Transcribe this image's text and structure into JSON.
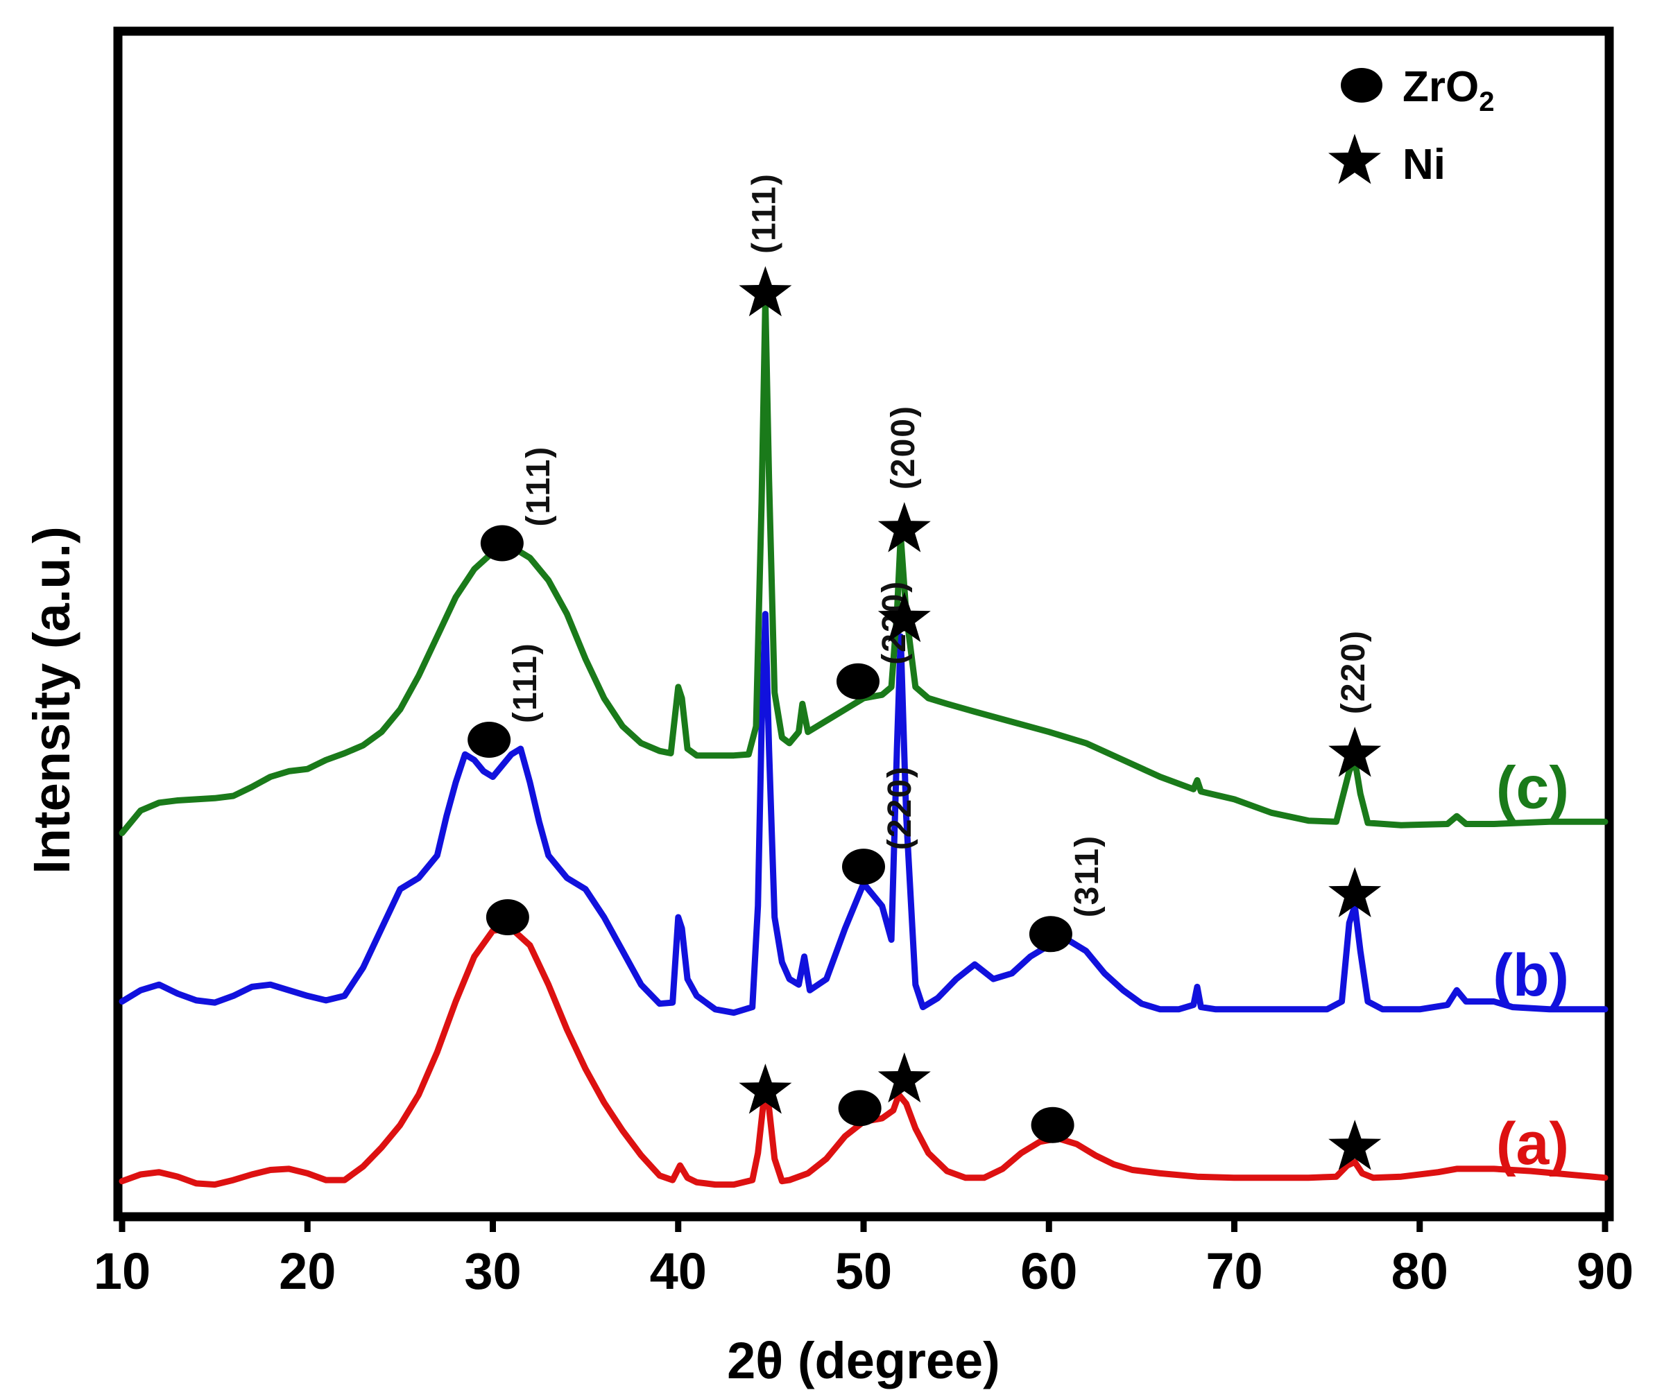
{
  "chart_data": {
    "type": "line",
    "xlabel": "2θ (degree)",
    "ylabel": "Intensity (a.u.)",
    "xlim": [
      10,
      90
    ],
    "ylim": [
      0,
      100
    ],
    "xticks": [
      "10",
      "20",
      "30",
      "40",
      "50",
      "60",
      "70",
      "80",
      "90"
    ],
    "legend": {
      "position": "top-right",
      "entries": [
        {
          "marker": "circle",
          "label_main": "ZrO",
          "label_sub": "2"
        },
        {
          "marker": "star",
          "label_main": "Ni",
          "label_sub": ""
        }
      ]
    },
    "series": [
      {
        "name": "(a)",
        "color": "#dd1111",
        "points": [
          [
            10,
            1.5
          ],
          [
            11,
            2.1
          ],
          [
            12,
            2.3
          ],
          [
            13,
            1.9
          ],
          [
            14,
            1.3
          ],
          [
            15,
            1.2
          ],
          [
            16,
            1.6
          ],
          [
            17,
            2.1
          ],
          [
            18,
            2.5
          ],
          [
            19,
            2.6
          ],
          [
            20,
            2.2
          ],
          [
            21,
            1.6
          ],
          [
            22,
            1.6
          ],
          [
            23,
            2.8
          ],
          [
            24,
            4.5
          ],
          [
            25,
            6.5
          ],
          [
            26,
            9.2
          ],
          [
            27,
            13
          ],
          [
            28,
            17.5
          ],
          [
            29,
            21.5
          ],
          [
            30,
            23.8
          ],
          [
            31,
            24
          ],
          [
            32,
            22.5
          ],
          [
            33,
            19
          ],
          [
            34,
            15
          ],
          [
            35,
            11.5
          ],
          [
            36,
            8.5
          ],
          [
            37,
            6
          ],
          [
            38,
            3.8
          ],
          [
            39,
            2
          ],
          [
            39.7,
            1.6
          ],
          [
            40.1,
            2.9
          ],
          [
            40.5,
            1.8
          ],
          [
            41,
            1.4
          ],
          [
            42,
            1.2
          ],
          [
            43,
            1.2
          ],
          [
            44,
            1.6
          ],
          [
            44.3,
            4
          ],
          [
            44.6,
            8.5
          ],
          [
            44.9,
            8
          ],
          [
            45.2,
            3.5
          ],
          [
            45.6,
            1.5
          ],
          [
            46,
            1.6
          ],
          [
            47,
            2.2
          ],
          [
            48,
            3.5
          ],
          [
            49,
            5.5
          ],
          [
            50,
            6.8
          ],
          [
            51,
            7.1
          ],
          [
            51.6,
            7.8
          ],
          [
            51.9,
            9.2
          ],
          [
            52.3,
            8.4
          ],
          [
            52.8,
            6.2
          ],
          [
            53.5,
            4
          ],
          [
            54.5,
            2.4
          ],
          [
            55.5,
            1.8
          ],
          [
            56.5,
            1.8
          ],
          [
            57.5,
            2.6
          ],
          [
            58.5,
            4
          ],
          [
            59.5,
            5
          ],
          [
            60.5,
            5.3
          ],
          [
            61.5,
            4.8
          ],
          [
            62.5,
            3.8
          ],
          [
            63.5,
            3
          ],
          [
            64.5,
            2.5
          ],
          [
            66,
            2.2
          ],
          [
            68,
            1.9
          ],
          [
            70,
            1.8
          ],
          [
            72,
            1.8
          ],
          [
            74,
            1.8
          ],
          [
            75.5,
            1.9
          ],
          [
            76.1,
            2.9
          ],
          [
            76.5,
            3.2
          ],
          [
            76.9,
            2.2
          ],
          [
            77.5,
            1.8
          ],
          [
            79,
            1.9
          ],
          [
            81,
            2.3
          ],
          [
            82,
            2.6
          ],
          [
            84,
            2.6
          ],
          [
            86,
            2.4
          ],
          [
            88,
            2.1
          ],
          [
            90,
            1.8
          ]
        ]
      },
      {
        "name": "(b)",
        "color": "#1111dd",
        "points": [
          [
            10,
            17.5
          ],
          [
            11,
            18.5
          ],
          [
            12,
            19
          ],
          [
            13,
            18.2
          ],
          [
            14,
            17.6
          ],
          [
            15,
            17.4
          ],
          [
            16,
            18
          ],
          [
            17,
            18.8
          ],
          [
            18,
            19
          ],
          [
            19,
            18.5
          ],
          [
            20,
            18
          ],
          [
            21,
            17.6
          ],
          [
            22,
            18
          ],
          [
            23,
            20.5
          ],
          [
            24,
            24
          ],
          [
            25,
            27.5
          ],
          [
            26,
            28.5
          ],
          [
            27,
            30.5
          ],
          [
            27.5,
            34
          ],
          [
            28,
            37
          ],
          [
            28.5,
            39.5
          ],
          [
            29,
            39
          ],
          [
            29.5,
            38
          ],
          [
            30,
            37.5
          ],
          [
            30.5,
            38.5
          ],
          [
            31,
            39.5
          ],
          [
            31.5,
            40
          ],
          [
            32,
            37
          ],
          [
            32.5,
            33.5
          ],
          [
            33,
            30.5
          ],
          [
            34,
            28.5
          ],
          [
            35,
            27.5
          ],
          [
            36,
            25
          ],
          [
            37,
            22
          ],
          [
            38,
            19
          ],
          [
            39,
            17.3
          ],
          [
            39.7,
            17.4
          ],
          [
            40,
            25
          ],
          [
            40.2,
            24
          ],
          [
            40.5,
            19.5
          ],
          [
            41,
            18
          ],
          [
            42,
            16.8
          ],
          [
            43,
            16.5
          ],
          [
            44,
            17
          ],
          [
            44.3,
            26
          ],
          [
            44.5,
            42
          ],
          [
            44.7,
            52
          ],
          [
            44.9,
            40
          ],
          [
            45.2,
            25
          ],
          [
            45.6,
            21
          ],
          [
            46,
            19.5
          ],
          [
            46.5,
            19
          ],
          [
            46.8,
            21.5
          ],
          [
            47.1,
            18.5
          ],
          [
            48,
            19.5
          ],
          [
            49,
            24
          ],
          [
            50,
            28
          ],
          [
            51,
            26
          ],
          [
            51.5,
            23
          ],
          [
            51.8,
            40
          ],
          [
            52,
            50
          ],
          [
            52.3,
            34
          ],
          [
            52.8,
            19
          ],
          [
            53.2,
            17
          ],
          [
            54,
            17.8
          ],
          [
            55,
            19.5
          ],
          [
            56,
            20.8
          ],
          [
            57,
            19.5
          ],
          [
            58,
            20
          ],
          [
            59,
            21.5
          ],
          [
            60,
            22.5
          ],
          [
            61,
            23
          ],
          [
            62,
            22
          ],
          [
            63,
            20
          ],
          [
            64,
            18.5
          ],
          [
            65,
            17.3
          ],
          [
            66,
            16.8
          ],
          [
            67,
            16.8
          ],
          [
            67.8,
            17.2
          ],
          [
            68,
            18.8
          ],
          [
            68.2,
            17
          ],
          [
            69,
            16.8
          ],
          [
            71,
            16.8
          ],
          [
            73,
            16.8
          ],
          [
            75,
            16.8
          ],
          [
            75.8,
            17.5
          ],
          [
            76.2,
            24.5
          ],
          [
            76.5,
            26
          ],
          [
            76.8,
            22
          ],
          [
            77.2,
            17.5
          ],
          [
            78,
            16.8
          ],
          [
            80,
            16.8
          ],
          [
            81.5,
            17.2
          ],
          [
            82,
            18.5
          ],
          [
            82.5,
            17.5
          ],
          [
            84,
            17.5
          ],
          [
            85,
            17
          ],
          [
            87,
            16.8
          ],
          [
            90,
            16.8
          ]
        ]
      },
      {
        "name": "(c)",
        "color": "#1a7a1a",
        "points": [
          [
            10,
            32.5
          ],
          [
            11,
            34.5
          ],
          [
            12,
            35.2
          ],
          [
            13,
            35.4
          ],
          [
            14,
            35.5
          ],
          [
            15,
            35.6
          ],
          [
            16,
            35.8
          ],
          [
            17,
            36.6
          ],
          [
            18,
            37.5
          ],
          [
            19,
            38
          ],
          [
            20,
            38.2
          ],
          [
            21,
            39
          ],
          [
            22,
            39.6
          ],
          [
            23,
            40.3
          ],
          [
            24,
            41.5
          ],
          [
            25,
            43.5
          ],
          [
            26,
            46.5
          ],
          [
            27,
            50
          ],
          [
            28,
            53.5
          ],
          [
            29,
            56
          ],
          [
            30,
            57.5
          ],
          [
            31,
            58
          ],
          [
            32,
            57
          ],
          [
            33,
            55
          ],
          [
            34,
            52
          ],
          [
            35,
            48
          ],
          [
            36,
            44.5
          ],
          [
            37,
            42
          ],
          [
            38,
            40.5
          ],
          [
            39,
            39.8
          ],
          [
            39.6,
            39.6
          ],
          [
            40,
            45.5
          ],
          [
            40.2,
            44.5
          ],
          [
            40.5,
            40
          ],
          [
            41,
            39.4
          ],
          [
            42,
            39.4
          ],
          [
            43,
            39.4
          ],
          [
            43.8,
            39.5
          ],
          [
            44.2,
            42
          ],
          [
            44.5,
            62
          ],
          [
            44.7,
            80
          ],
          [
            44.9,
            64
          ],
          [
            45.2,
            45
          ],
          [
            45.6,
            41
          ],
          [
            46,
            40.5
          ],
          [
            46.5,
            41.5
          ],
          [
            46.7,
            44
          ],
          [
            47,
            41.5
          ],
          [
            48,
            42.5
          ],
          [
            49,
            43.5
          ],
          [
            50,
            44.5
          ],
          [
            51,
            44.8
          ],
          [
            51.5,
            45.5
          ],
          [
            51.8,
            52
          ],
          [
            52,
            59
          ],
          [
            52.3,
            52
          ],
          [
            52.8,
            45.5
          ],
          [
            53.5,
            44.5
          ],
          [
            54.5,
            44
          ],
          [
            56,
            43.3
          ],
          [
            58,
            42.4
          ],
          [
            60,
            41.5
          ],
          [
            62,
            40.5
          ],
          [
            64,
            39
          ],
          [
            66,
            37.5
          ],
          [
            67.8,
            36.4
          ],
          [
            68,
            37.2
          ],
          [
            68.2,
            36.2
          ],
          [
            70,
            35.5
          ],
          [
            72,
            34.3
          ],
          [
            74,
            33.6
          ],
          [
            75.5,
            33.5
          ],
          [
            76.2,
            38
          ],
          [
            76.5,
            39
          ],
          [
            76.8,
            36
          ],
          [
            77.2,
            33.4
          ],
          [
            79,
            33.2
          ],
          [
            81.5,
            33.3
          ],
          [
            82,
            34
          ],
          [
            82.5,
            33.3
          ],
          [
            84,
            33.3
          ],
          [
            87,
            33.5
          ],
          [
            90,
            33.5
          ]
        ]
      }
    ],
    "peak_markers": [
      {
        "x": 30.5,
        "y": 58.3,
        "marker": "circle",
        "hkl": "(111)"
      },
      {
        "x": 44.7,
        "y": 80.5,
        "marker": "star",
        "hkl": "(111)"
      },
      {
        "x": 52.2,
        "y": 59.5,
        "marker": "star",
        "hkl": "(200)"
      },
      {
        "x": 49.7,
        "y": 46,
        "marker": "circle",
        "hkl": "(220)"
      },
      {
        "x": 76.5,
        "y": 39.5,
        "marker": "star",
        "hkl": "(220)"
      },
      {
        "x": 29.8,
        "y": 40.8,
        "marker": "circle",
        "hkl": "(111)"
      },
      {
        "x": 52.2,
        "y": 51.5,
        "marker": "star",
        "hkl": ""
      },
      {
        "x": 50,
        "y": 29.5,
        "marker": "circle",
        "hkl": "(220)"
      },
      {
        "x": 76.5,
        "y": 27,
        "marker": "star",
        "hkl": ""
      },
      {
        "x": 60.1,
        "y": 23.5,
        "marker": "circle",
        "hkl": "(311)"
      },
      {
        "x": 30.8,
        "y": 25,
        "marker": "circle",
        "hkl": ""
      },
      {
        "x": 44.7,
        "y": 9.5,
        "marker": "star",
        "hkl": ""
      },
      {
        "x": 49.8,
        "y": 8,
        "marker": "circle",
        "hkl": ""
      },
      {
        "x": 52.2,
        "y": 10.5,
        "marker": "star",
        "hkl": ""
      },
      {
        "x": 60.2,
        "y": 6.5,
        "marker": "circle",
        "hkl": ""
      },
      {
        "x": 76.5,
        "y": 4.5,
        "marker": "star",
        "hkl": ""
      }
    ]
  }
}
